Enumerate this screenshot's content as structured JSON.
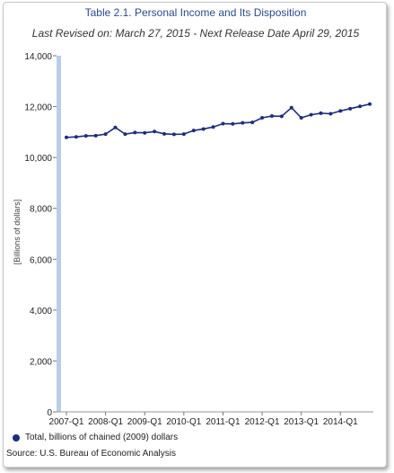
{
  "chart_data": {
    "type": "line",
    "title": "Table 2.1. Personal Income and Its Disposition",
    "subtitle": "Last Revised on: March 27, 2015 - Next Release Date April 29, 2015",
    "ylabel": "[Billions of dollars]",
    "xlabel": "",
    "ylim": [
      0,
      14000
    ],
    "yticks": [
      "0",
      "2,000",
      "4,000",
      "6,000",
      "8,000",
      "10,000",
      "12,000",
      "14,000"
    ],
    "xticks": [
      "2007-Q1",
      "2008-Q1",
      "2009-Q1",
      "2010-Q1",
      "2011-Q1",
      "2012-Q1",
      "2013-Q1",
      "2014-Q1"
    ],
    "legend_position": "bottom-left",
    "grid": false,
    "series": [
      {
        "name": "Total, billions of chained (2009) dollars",
        "color": "#1f2d7a",
        "x": [
          "2007-Q1",
          "2007-Q2",
          "2007-Q3",
          "2007-Q4",
          "2008-Q1",
          "2008-Q2",
          "2008-Q3",
          "2008-Q4",
          "2009-Q1",
          "2009-Q2",
          "2009-Q3",
          "2009-Q4",
          "2010-Q1",
          "2010-Q2",
          "2010-Q3",
          "2010-Q4",
          "2011-Q1",
          "2011-Q2",
          "2011-Q3",
          "2011-Q4",
          "2012-Q1",
          "2012-Q2",
          "2012-Q3",
          "2012-Q4",
          "2013-Q1",
          "2013-Q2",
          "2013-Q3",
          "2013-Q4",
          "2014-Q1",
          "2014-Q2",
          "2014-Q3",
          "2014-Q4"
        ],
        "values": [
          10790,
          10810,
          10850,
          10860,
          10920,
          11180,
          10920,
          10980,
          10970,
          11020,
          10930,
          10910,
          10920,
          11060,
          11120,
          11200,
          11330,
          11320,
          11360,
          11380,
          11560,
          11630,
          11620,
          11960,
          11560,
          11680,
          11740,
          11720,
          11830,
          11920,
          12010,
          12100
        ]
      }
    ]
  },
  "source": "Source: U.S. Bureau of Economic  Analysis"
}
